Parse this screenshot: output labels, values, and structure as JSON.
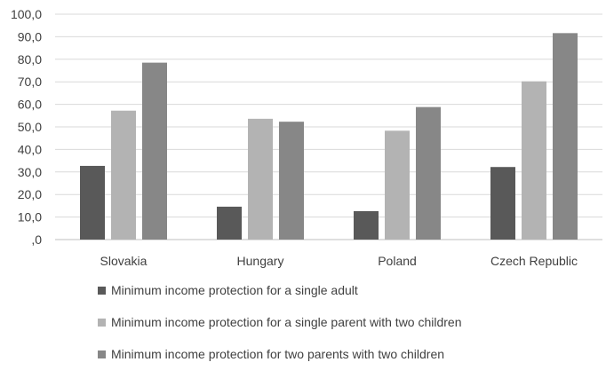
{
  "chart_data": {
    "type": "bar",
    "categories": [
      "Slovakia",
      "Hungary",
      "Poland",
      "Czech Republic"
    ],
    "series": [
      {
        "name": "Minimum income protection for a single adult",
        "color": "#595959",
        "values": [
          32.7,
          14.6,
          12.6,
          32.2
        ]
      },
      {
        "name": "Minimum income protection for a single parent with two children",
        "color": "#b3b3b3",
        "values": [
          57.2,
          53.6,
          48.3,
          70.2
        ]
      },
      {
        "name": "Minimum income protection for two parents with two children",
        "color": "#878787",
        "values": [
          78.5,
          52.3,
          58.8,
          91.6
        ]
      }
    ],
    "y_ticks": [
      ",0",
      "10,0",
      "20,0",
      "30,0",
      "40,0",
      "50,0",
      "60,0",
      "70,0",
      "80,0",
      "90,0",
      "100,0"
    ],
    "ylim": [
      0,
      100
    ],
    "gridlines": true,
    "legend_position": "bottom"
  }
}
